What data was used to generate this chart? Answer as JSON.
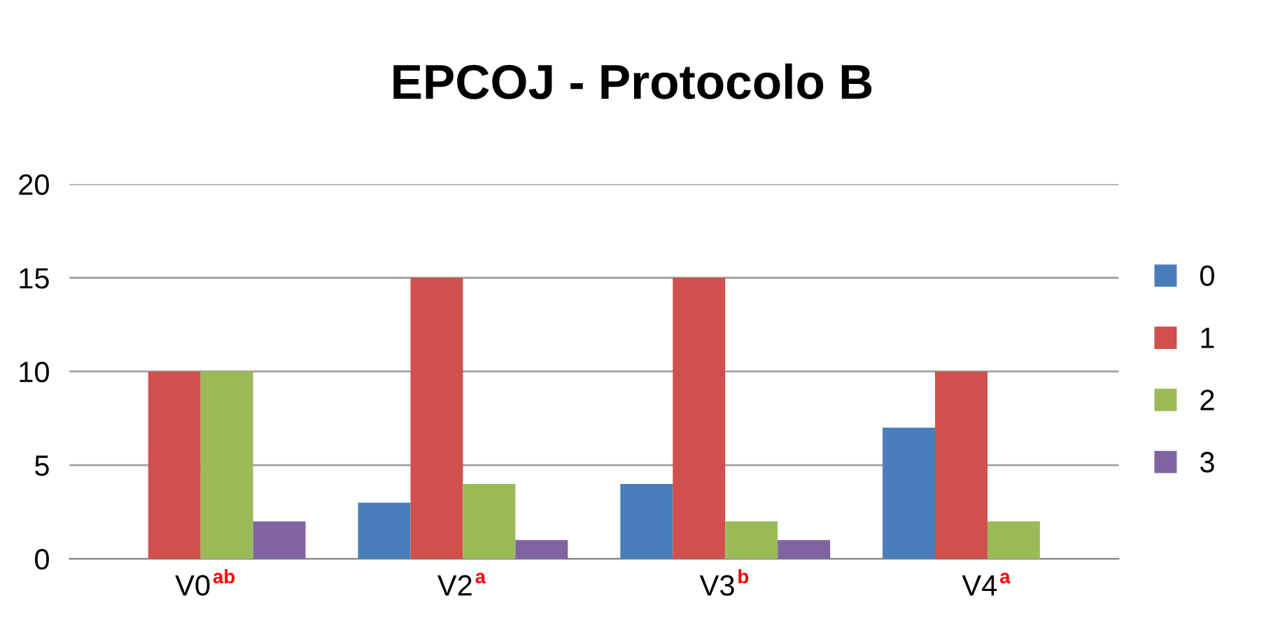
{
  "chart_data": {
    "type": "bar",
    "title": "EPCOJ - Protocolo B",
    "categories": [
      "V0$^{ab}$",
      "V2$^{a}$",
      "V3$^{b}$",
      "V4$^{a}$"
    ],
    "series": [
      {
        "name": "0",
        "color": "#4a7ebb",
        "values": [
          0,
          3,
          4,
          7
        ]
      },
      {
        "name": "1",
        "color": "#d0504d",
        "values": [
          10,
          15,
          15,
          10
        ]
      },
      {
        "name": "2",
        "color": "#9bbb59",
        "values": [
          10,
          4,
          2,
          2
        ]
      },
      {
        "name": "3",
        "color": "#8064a2",
        "values": [
          2,
          1,
          1,
          0
        ]
      }
    ],
    "ylim": [
      0,
      20
    ],
    "yticks": [
      0,
      5,
      10,
      15,
      20
    ],
    "grid": "y",
    "legend": "right"
  }
}
